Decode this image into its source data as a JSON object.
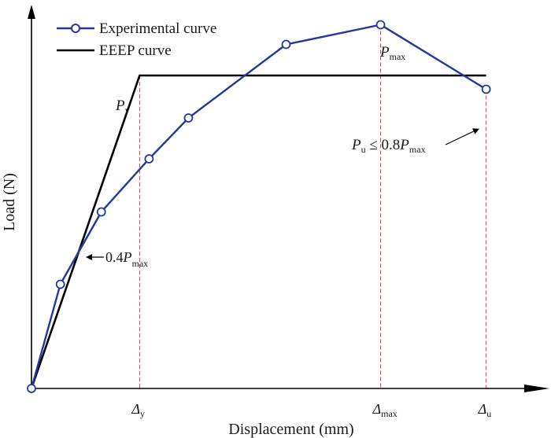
{
  "chart_data": {
    "type": "line",
    "xlabel": "Displacement (mm)",
    "ylabel": "Load (N)",
    "xlim": [
      0,
      100
    ],
    "ylim": [
      0,
      100
    ],
    "grid": false,
    "legend_placement": "top-left",
    "colors": {
      "experimental": "#23399a",
      "eeep": "#000000",
      "guide": "#d83a3a",
      "axis": "#000000"
    },
    "series": [
      {
        "name": "Experimental curve",
        "marker": "circle",
        "x": [
          0,
          5.5,
          13.3,
          22.4,
          29.9,
          48.5,
          66.5,
          86.6
        ],
        "y": [
          0,
          26.5,
          44.9,
          58.4,
          68.8,
          87.5,
          92.5,
          76.1
        ]
      },
      {
        "name": "EEEP curve",
        "x": [
          0,
          20.6,
          86.6
        ],
        "y": [
          0,
          79.6,
          79.6
        ]
      }
    ],
    "guides": {
      "x_dy": 20.6,
      "x_dmax": 66.5,
      "x_du": 86.6
    },
    "annotations": {
      "py": {
        "main": "P",
        "sub": "y"
      },
      "pmax": {
        "main": "P",
        "sub": "max"
      },
      "pu_prefix": "P",
      "pu_sub": "u",
      "pu_rel": " ≤ 0.8",
      "pu_main2": "P",
      "pu_sub2": "max",
      "p04_prefix": "0.4",
      "p04_main": "P",
      "p04_sub": "max"
    },
    "ticks": {
      "dy": {
        "main": "Δ",
        "sub": "y"
      },
      "dmax": {
        "main": "Δ",
        "sub": "max"
      },
      "du": {
        "main": "Δ",
        "sub": "u"
      }
    }
  }
}
